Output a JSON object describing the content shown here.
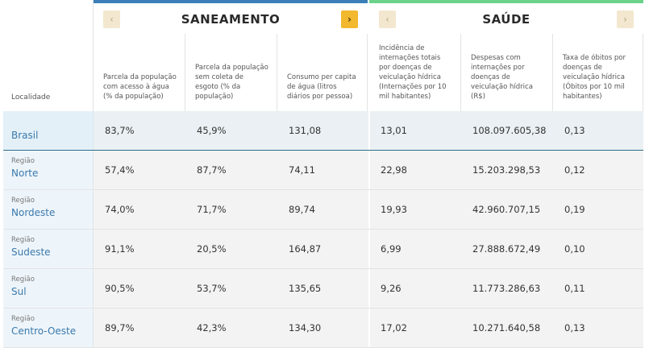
{
  "header": {
    "location_label": "Localidade",
    "groups": [
      {
        "title": "SANEAMENTO",
        "prev_icon": "chevron-left-icon",
        "next_icon": "chevron-right-icon"
      },
      {
        "title": "SAÚDE",
        "prev_icon": "chevron-left-icon",
        "next_icon": "chevron-right-icon"
      }
    ],
    "columns": [
      "Parcela da população com acesso à água (% da população)",
      "Parcela da população sem coleta de esgoto (% da população)",
      "Consumo per capita de água (litros diários por pessoa)",
      "Incidência de internações totais por doenças de veiculação hídrica (Internações por 10 mil habitantes)",
      "Despesas com internações por doenças de veiculação hídrica (R$)",
      "Taxa de óbitos por doenças de veiculação hídrica (Óbitos por 10 mil habitantes)"
    ]
  },
  "nav_glyphs": {
    "prev": "‹",
    "next": "›"
  },
  "colors": {
    "saneamento_accent": "#3a7fb8",
    "saude_accent": "#6bd28a",
    "active_nav": "#f2b82e",
    "link": "#3a79ad"
  },
  "rows": [
    {
      "prefix": "",
      "name": "Brasil",
      "values": [
        "83,7%",
        "45,9%",
        "131,08",
        "13,01",
        "108.097.605,38",
        "0,13"
      ]
    },
    {
      "prefix": "Região",
      "name": "Norte",
      "values": [
        "57,4%",
        "87,7%",
        "74,11",
        "22,98",
        "15.203.298,53",
        "0,12"
      ]
    },
    {
      "prefix": "Região",
      "name": "Nordeste",
      "values": [
        "74,0%",
        "71,7%",
        "89,74",
        "19,93",
        "42.960.707,15",
        "0,19"
      ]
    },
    {
      "prefix": "Região",
      "name": "Sudeste",
      "values": [
        "91,1%",
        "20,5%",
        "164,87",
        "6,99",
        "27.888.672,49",
        "0,10"
      ]
    },
    {
      "prefix": "Região",
      "name": "Sul",
      "values": [
        "90,5%",
        "53,7%",
        "135,65",
        "9,26",
        "11.773.286,63",
        "0,11"
      ]
    },
    {
      "prefix": "Região",
      "name": "Centro-Oeste",
      "values": [
        "89,7%",
        "42,3%",
        "134,30",
        "17,02",
        "10.271.640,58",
        "0,13"
      ]
    }
  ]
}
